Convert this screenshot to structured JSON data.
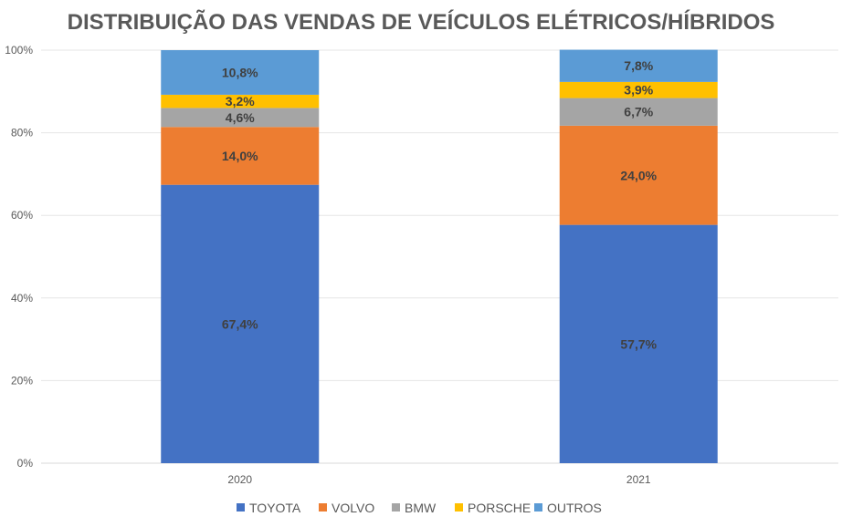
{
  "chart_data": {
    "type": "bar",
    "stacked": true,
    "title": "DISTRIBUIÇÃO DAS VENDAS DE VEÍCULOS ELÉTRICOS/HÍBRIDOS",
    "xlabel": "",
    "ylabel": "",
    "ylim": [
      0,
      100
    ],
    "yticks": [
      "0%",
      "20%",
      "40%",
      "60%",
      "80%",
      "100%"
    ],
    "grid": true,
    "legend_position": "bottom",
    "categories": [
      "2020",
      "2021"
    ],
    "series": [
      {
        "name": "TOYOTA",
        "color": "#4472C4",
        "values": [
          67.4,
          57.7
        ],
        "labels": [
          "67,4%",
          "57,7%"
        ]
      },
      {
        "name": "VOLVO",
        "color": "#ED7D31",
        "values": [
          14.0,
          24.0
        ],
        "labels": [
          "14,0%",
          "24,0%"
        ]
      },
      {
        "name": "BMW",
        "color": "#A5A5A5",
        "values": [
          4.6,
          6.7
        ],
        "labels": [
          "4,6%",
          "6,7%"
        ]
      },
      {
        "name": "PORSCHE",
        "color": "#FFC000",
        "values": [
          3.2,
          3.9
        ],
        "labels": [
          "3,2%",
          "3,9%"
        ]
      },
      {
        "name": "OUTROS",
        "color": "#5B9BD5",
        "values": [
          10.8,
          7.8
        ],
        "labels": [
          "10,8%",
          "7,8%"
        ]
      }
    ]
  }
}
